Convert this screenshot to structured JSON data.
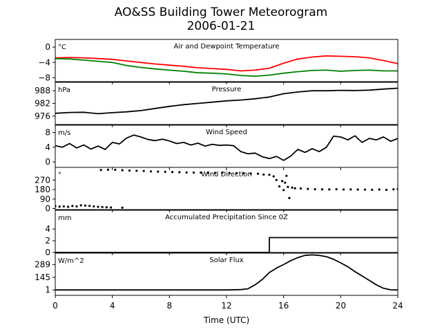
{
  "title_line1": "AO&SS Building Tower Meteorogram",
  "title_line2": "2006-01-21",
  "chart_data": {
    "type": "line",
    "x_label": "Time (UTC)",
    "x_ticks": [
      0,
      4,
      8,
      12,
      16,
      20,
      24
    ],
    "x_range": [
      0,
      24
    ],
    "panels": [
      {
        "id": "temp",
        "title": "Air and Dewpoint Temperature",
        "unit": "°C",
        "y_ticks": [
          0,
          -4,
          -8
        ],
        "y_range": [
          -9,
          2
        ],
        "series": [
          {
            "color": "#ff0000",
            "x": [
              0,
              1,
              2,
              3,
              4,
              5,
              6,
              7,
              8,
              9,
              10,
              11,
              12,
              13,
              14,
              15,
              16,
              17,
              18,
              19,
              20,
              21,
              22,
              23,
              24
            ],
            "y": [
              -2.8,
              -2.7,
              -2.8,
              -3.0,
              -3.2,
              -3.6,
              -4.0,
              -4.4,
              -4.7,
              -5.0,
              -5.4,
              -5.6,
              -5.8,
              -6.2,
              -6.0,
              -5.5,
              -4.2,
              -3.1,
              -2.6,
              -2.3,
              -2.4,
              -2.5,
              -2.8,
              -3.5,
              -4.3
            ]
          },
          {
            "color": "#008000",
            "x": [
              0,
              1,
              2,
              3,
              4,
              5,
              6,
              7,
              8,
              9,
              10,
              11,
              12,
              13,
              14,
              15,
              16,
              17,
              18,
              19,
              20,
              21,
              22,
              23,
              24
            ],
            "y": [
              -3.0,
              -3.1,
              -3.4,
              -3.7,
              -4.0,
              -4.8,
              -5.3,
              -5.7,
              -6.0,
              -6.3,
              -6.7,
              -6.8,
              -7.0,
              -7.4,
              -7.6,
              -7.3,
              -6.8,
              -6.4,
              -6.1,
              -6.0,
              -6.3,
              -6.1,
              -6.0,
              -6.2,
              -6.2
            ]
          }
        ]
      },
      {
        "id": "pressure",
        "title": "Pressure",
        "unit": "hPa",
        "y_ticks": [
          988,
          982,
          976
        ],
        "y_range": [
          972,
          992
        ],
        "series": [
          {
            "color": "#000000",
            "x": [
              0,
              1,
              2,
              3,
              4,
              5,
              6,
              7,
              8,
              9,
              10,
              11,
              12,
              13,
              14,
              15,
              16,
              17,
              18,
              19,
              20,
              21,
              22,
              23,
              24
            ],
            "y": [
              977.3,
              977.7,
              977.8,
              977.1,
              977.6,
              978.0,
              978.6,
              979.6,
              980.6,
              981.4,
              982.0,
              982.6,
              983.2,
              983.6,
              984.2,
              985.0,
              986.6,
              987.4,
              988.0,
              988.0,
              988.2,
              988.1,
              988.3,
              988.8,
              989.2
            ]
          }
        ]
      },
      {
        "id": "wind_speed",
        "title": "Wind Speed",
        "unit": "m/s",
        "y_ticks": [
          8,
          4,
          0
        ],
        "y_range": [
          -1.5,
          10
        ],
        "series": [
          {
            "color": "#000000",
            "x": [
              0,
              0.5,
              1,
              1.5,
              2,
              2.5,
              3,
              3.5,
              4,
              4.5,
              5,
              5.5,
              6,
              6.5,
              7,
              7.5,
              8,
              8.5,
              9,
              9.5,
              10,
              10.5,
              11,
              11.5,
              12,
              12.5,
              13,
              13.5,
              14,
              14.5,
              15,
              15.5,
              16,
              16.5,
              17,
              17.5,
              18,
              18.5,
              19,
              19.5,
              20,
              20.5,
              21,
              21.5,
              22,
              22.5,
              23,
              23.5,
              24
            ],
            "y": [
              4.4,
              4.0,
              5.0,
              3.8,
              4.6,
              3.5,
              4.3,
              3.4,
              5.3,
              4.9,
              6.5,
              7.3,
              6.8,
              6.1,
              5.8,
              6.2,
              5.7,
              5.0,
              5.3,
              4.6,
              5.1,
              4.3,
              4.8,
              4.5,
              4.6,
              4.4,
              2.8,
              2.2,
              2.4,
              1.4,
              0.9,
              1.5,
              0.4,
              1.6,
              3.4,
              2.6,
              3.6,
              2.8,
              4.0,
              7.0,
              6.8,
              6.0,
              7.1,
              5.3,
              6.4,
              6.0,
              6.8,
              5.6,
              6.4
            ]
          }
        ]
      },
      {
        "id": "wind_dir",
        "title": "Wind Direction",
        "unit": "°",
        "y_ticks": [
          270,
          180,
          90,
          0
        ],
        "y_range": [
          -10,
          390
        ],
        "series": [
          {
            "color": "#000000",
            "style": "points",
            "x": [
              0,
              0.3,
              0.6,
              0.9,
              1.2,
              1.5,
              1.8,
              2.1,
              2.4,
              2.7,
              3.0,
              3.3,
              3.6,
              3.9,
              4.7
            ],
            "y": [
              22,
              18,
              20,
              16,
              24,
              20,
              30,
              28,
              25,
              20,
              16,
              14,
              12,
              10,
              8
            ]
          },
          {
            "color": "#000000",
            "style": "points",
            "x": [
              3.2,
              3.7,
              4.2,
              4.7,
              5.2,
              5.7,
              6.2,
              6.7,
              7.2,
              7.7,
              8.2,
              8.7,
              9.2,
              9.7,
              10.2,
              10.7,
              11.2,
              11.7,
              12.2,
              12.7,
              13.2,
              13.7,
              14.2,
              14.6,
              15.0,
              15.3,
              15.5,
              15.7,
              15.9,
              16.0,
              16.1,
              16.2,
              16.3,
              16.4,
              16.6,
              16.8,
              17.2,
              17.7,
              18.2,
              18.7,
              19.2,
              19.7,
              20.2,
              20.7,
              21.2,
              21.7,
              22.2,
              22.7,
              23.2,
              23.7,
              24.0
            ],
            "y": [
              365,
              368,
              367,
              363,
              360,
              358,
              356,
              352,
              350,
              348,
              346,
              344,
              342,
              341,
              340,
              339,
              338,
              338,
              336,
              335,
              334,
              332,
              330,
              322,
              320,
              305,
              270,
              210,
              260,
              175,
              245,
              310,
              205,
              100,
              198,
              192,
              190,
              186,
              183,
              182,
              181,
              183,
              180,
              181,
              180,
              179,
              178,
              180,
              177,
              182,
              185
            ]
          }
        ]
      },
      {
        "id": "precip",
        "title": "Accumulated Precipitation Since 0Z",
        "unit": "mm",
        "y_ticks": [
          4,
          2,
          0
        ],
        "y_range": [
          0,
          7.2
        ],
        "series": [
          {
            "color": "#000000",
            "x": [
              0,
              15.0,
              15.0,
              24
            ],
            "y": [
              0,
              0,
              2.54,
              2.54
            ]
          }
        ]
      },
      {
        "id": "solar",
        "title": "Solar Flux",
        "unit": "W/m^2",
        "y_ticks": [
          289,
          145,
          1
        ],
        "y_range": [
          -60,
          420
        ],
        "series": [
          {
            "color": "#000000",
            "x": [
              0,
              1,
              2,
              3,
              4,
              5,
              6,
              7,
              8,
              9,
              10,
              11,
              12,
              13,
              13.5,
              14,
              14.5,
              15,
              15.5,
              16,
              16.5,
              17,
              17.5,
              18,
              18.5,
              19,
              19.5,
              20,
              20.5,
              21,
              21.5,
              22,
              22.5,
              23,
              23.5,
              24
            ],
            "y": [
              1,
              1,
              1,
              1,
              1,
              1,
              1,
              1,
              1,
              1,
              1,
              1,
              1,
              5,
              15,
              60,
              120,
              200,
              250,
              290,
              335,
              370,
              395,
              400,
              395,
              380,
              350,
              310,
              265,
              210,
              160,
              110,
              60,
              20,
              3,
              1
            ]
          }
        ]
      }
    ]
  }
}
